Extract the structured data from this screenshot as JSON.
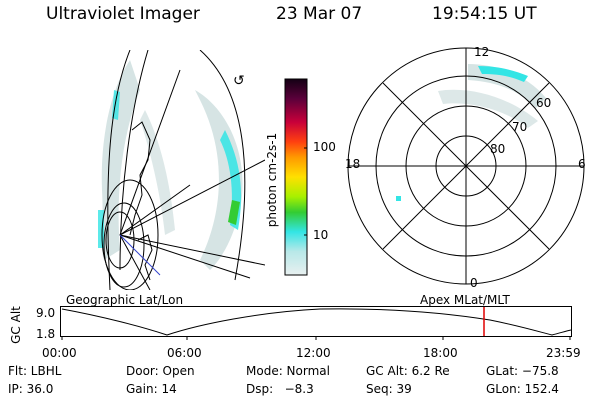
{
  "header": {
    "title": "Ultraviolet Imager",
    "date": "23 Mar 07",
    "time": "19:54:15 UT"
  },
  "colorbar": {
    "label": "photon cm-2s-1",
    "ticks": [
      "100",
      "10"
    ]
  },
  "polar_plot": {
    "mlt_labels": [
      "12",
      "18",
      "6",
      "0"
    ],
    "mlat_labels": [
      "60",
      "70",
      "80"
    ]
  },
  "orbit": {
    "left_label": "Geographic Lat/Lon",
    "right_label": "Apex MLat/MLT",
    "axis_label": "GC Alt",
    "y_ticks": [
      "9.0",
      "1.8"
    ],
    "x_ticks": [
      "00:00",
      "06:00",
      "12:00",
      "18:00",
      "23:59"
    ]
  },
  "info": {
    "row1": {
      "flt": "Flt: LBHL",
      "door": "Door: Open",
      "mode": "Mode: Normal",
      "gcalt": "GC Alt: 6.2 Re",
      "glat": "GLat: −75.8"
    },
    "row2": {
      "ip": "IP: 36.0",
      "gain": "Gain: 14",
      "dsp": "Dsp:   −8.3",
      "seq": "Seq: 39",
      "glon": "GLon: 152.4"
    }
  },
  "colors": {
    "cyan": "#33e5e5",
    "green": "#33cc33",
    "faint": "#c8dcdc",
    "marker": "#e00000"
  }
}
